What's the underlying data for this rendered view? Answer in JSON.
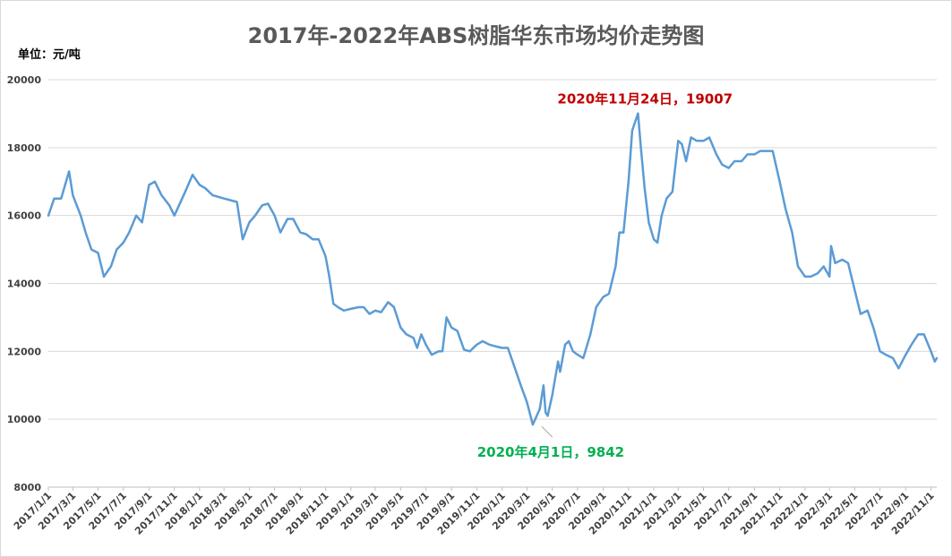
{
  "chart_data": {
    "type": "line",
    "title": "2017年-2022年ABS树脂华东市场均价走势图",
    "unit_label": "单位：元/吨",
    "ylim": [
      8000,
      20000
    ],
    "y_ticks": [
      "8000",
      "10000",
      "12000",
      "14000",
      "16000",
      "18000",
      "20000"
    ],
    "x_range": [
      "2017/1/1",
      "2022/11/15"
    ],
    "x_ticks": [
      "2017/1/1",
      "2017/3/1",
      "2017/5/1",
      "2017/7/1",
      "2017/9/1",
      "2017/11/1",
      "2018/1/1",
      "2018/3/1",
      "2018/5/1",
      "2018/7/1",
      "2018/9/1",
      "2018/11/1",
      "2019/1/1",
      "2019/3/1",
      "2019/5/1",
      "2019/7/1",
      "2019/9/1",
      "2019/11/1",
      "2020/1/1",
      "2020/3/1",
      "2020/5/1",
      "2020/7/1",
      "2020/9/1",
      "2020/11/1",
      "2021/1/1",
      "2021/3/1",
      "2021/5/1",
      "2021/7/1",
      "2021/9/1",
      "2021/11/1",
      "2022/1/1",
      "2022/3/1",
      "2022/5/1",
      "2022/7/1",
      "2022/9/1",
      "2022/11/1"
    ],
    "grid": true,
    "legend": "none",
    "line_color": "#5b9bd5",
    "series": [
      {
        "x": [
          "2017/1/1",
          "2017/1/15",
          "2017/2/1",
          "2017/2/20",
          "2017/3/1",
          "2017/3/20",
          "2017/4/1",
          "2017/4/15",
          "2017/5/1",
          "2017/5/15",
          "2017/6/1",
          "2017/6/15",
          "2017/7/1",
          "2017/7/15",
          "2017/8/1",
          "2017/8/15",
          "2017/9/1",
          "2017/9/15",
          "2017/10/1",
          "2017/10/20",
          "2017/11/1",
          "2017/11/20",
          "2017/12/1",
          "2017/12/15",
          "2018/1/1",
          "2018/1/15",
          "2018/2/1",
          "2018/3/1",
          "2018/4/1",
          "2018/4/15",
          "2018/5/1",
          "2018/5/15",
          "2018/6/1",
          "2018/6/15",
          "2018/7/1",
          "2018/7/15",
          "2018/8/1",
          "2018/8/15",
          "2018/9/1",
          "2018/9/15",
          "2018/10/1",
          "2018/10/15",
          "2018/11/1",
          "2018/11/10",
          "2018/11/20",
          "2018/12/1",
          "2018/12/15",
          "2019/1/1",
          "2019/1/20",
          "2019/2/1",
          "2019/2/15",
          "2019/3/1",
          "2019/3/15",
          "2019/4/1",
          "2019/4/15",
          "2019/5/1",
          "2019/5/15",
          "2019/6/1",
          "2019/6/10",
          "2019/6/20",
          "2019/7/1",
          "2019/7/15",
          "2019/8/1",
          "2019/8/10",
          "2019/8/20",
          "2019/9/1",
          "2019/9/15",
          "2019/10/1",
          "2019/10/15",
          "2019/11/1",
          "2019/11/15",
          "2019/12/1",
          "2019/12/15",
          "2020/1/1",
          "2020/1/15",
          "2020/2/1",
          "2020/2/15",
          "2020/3/1",
          "2020/3/15",
          "2020/4/1",
          "2020/4/10",
          "2020/4/15",
          "2020/4/20",
          "2020/5/1",
          "2020/5/15",
          "2020/5/20",
          "2020/6/1",
          "2020/6/10",
          "2020/6/20",
          "2020/7/1",
          "2020/7/15",
          "2020/8/1",
          "2020/8/15",
          "2020/9/1",
          "2020/9/15",
          "2020/10/1",
          "2020/10/10",
          "2020/10/20",
          "2020/11/1",
          "2020/11/10",
          "2020/11/24",
          "2020/12/1",
          "2020/12/10",
          "2020/12/20",
          "2021/1/1",
          "2021/1/10",
          "2021/1/20",
          "2021/2/1",
          "2021/2/15",
          "2021/3/1",
          "2021/3/10",
          "2021/3/20",
          "2021/4/1",
          "2021/4/15",
          "2021/5/1",
          "2021/5/15",
          "2021/6/1",
          "2021/6/15",
          "2021/7/1",
          "2021/7/15",
          "2021/8/1",
          "2021/8/15",
          "2021/9/1",
          "2021/9/15",
          "2021/10/1",
          "2021/10/15",
          "2021/11/1",
          "2021/11/15",
          "2021/12/1",
          "2021/12/15",
          "2022/1/1",
          "2022/1/15",
          "2022/2/1",
          "2022/2/15",
          "2022/3/1",
          "2022/3/5",
          "2022/3/15",
          "2022/4/1",
          "2022/4/15",
          "2022/5/1",
          "2022/5/15",
          "2022/6/1",
          "2022/6/15",
          "2022/7/1",
          "2022/7/15",
          "2022/8/1",
          "2022/8/15",
          "2022/9/1",
          "2022/9/15",
          "2022/10/1",
          "2022/10/15",
          "2022/11/1",
          "2022/11/10",
          "2022/11/15"
        ],
        "y": [
          16000,
          16500,
          16500,
          17300,
          16600,
          16000,
          15500,
          15000,
          14900,
          14200,
          14500,
          15000,
          15200,
          15500,
          16000,
          15800,
          16900,
          17000,
          16600,
          16300,
          16000,
          16500,
          16800,
          17200,
          16900,
          16800,
          16600,
          16500,
          16400,
          15300,
          15800,
          16000,
          16300,
          16350,
          16000,
          15500,
          15900,
          15900,
          15500,
          15450,
          15300,
          15300,
          14800,
          14200,
          13400,
          13300,
          13200,
          13250,
          13300,
          13300,
          13100,
          13200,
          13150,
          13450,
          13300,
          12700,
          12500,
          12400,
          12100,
          12500,
          12200,
          11900,
          12000,
          12000,
          13000,
          12700,
          12600,
          12050,
          12000,
          12200,
          12300,
          12200,
          12150,
          12100,
          12100,
          11500,
          11000,
          10500,
          9842,
          10300,
          11000,
          10200,
          10100,
          10700,
          11700,
          11400,
          12200,
          12300,
          12000,
          11900,
          11800,
          12500,
          13300,
          13600,
          13700,
          14500,
          15500,
          15500,
          17000,
          18500,
          19007,
          18000,
          16800,
          15800,
          15300,
          15200,
          16000,
          16500,
          16700,
          18200,
          18100,
          17600,
          18300,
          18200,
          18200,
          18300,
          17800,
          17500,
          17400,
          17600,
          17600,
          17800,
          17800,
          17900,
          17900,
          17900,
          17000,
          16200,
          15500,
          14500,
          14200,
          14200,
          14300,
          14500,
          14200,
          15100,
          14600,
          14700,
          14600,
          13800,
          13100,
          13200,
          12700,
          12000,
          11900,
          11800,
          11500,
          11900,
          12200,
          12500,
          12500,
          12000,
          11700,
          11800
        ]
      }
    ],
    "annotations": [
      {
        "text": "2020年11月24日，19007",
        "x": "2020/11/24",
        "y": 19007,
        "color": "#c00000"
      },
      {
        "text": "2020年4月1日，9842",
        "x": "2020/4/1",
        "y": 9842,
        "color": "#00b050"
      }
    ]
  }
}
